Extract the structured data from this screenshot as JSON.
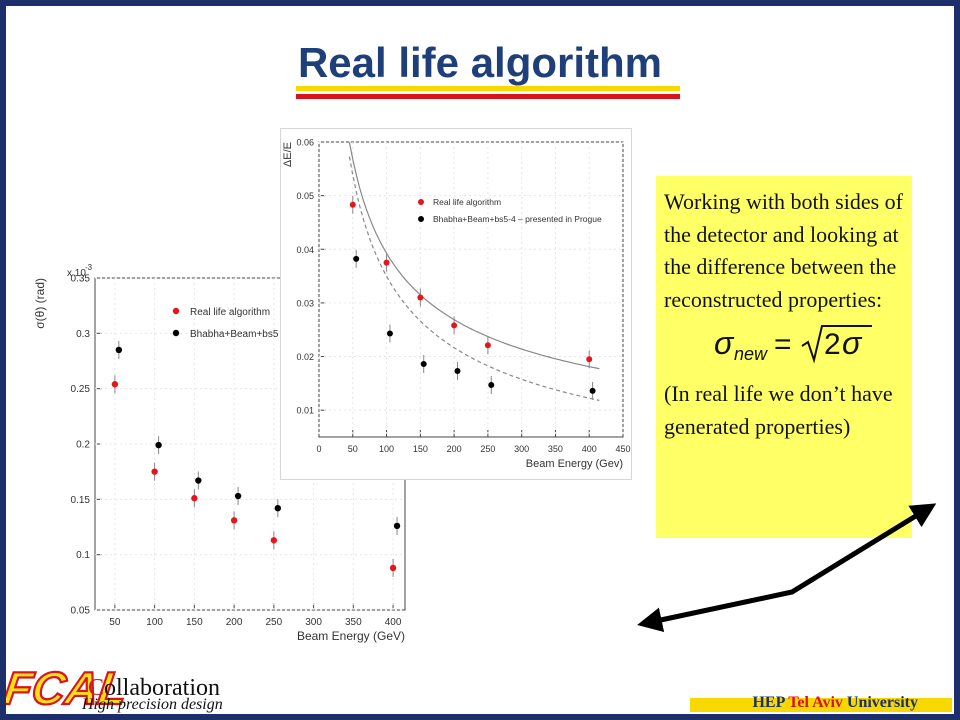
{
  "title": "Real life algorithm",
  "note": {
    "line1": "Working with both sides of the detector and looking at the difference between the reconstructed properties:",
    "formula_label": "σ_new = √2 σ",
    "line2": "(In real life we don’t have generated properties)"
  },
  "footer": {
    "logo_text": "FCAL",
    "collab_first": "C",
    "collab_rest": "ollaboration",
    "subtitle": "High precision design",
    "uni_prefix": "HEP ",
    "uni_city": "Tel Aviv",
    "uni_suffix": " University"
  },
  "colors": {
    "title": "#1e3f7a",
    "frame": "#1c2f6b",
    "underline_yellow": "#f7d800",
    "underline_red": "#d8141d",
    "note_bg": "#ffff66",
    "series_red": "#e8141c",
    "series_black": "#000000"
  },
  "chart_data": [
    {
      "type": "scatter",
      "xlabel": "Beam Energy (GeV)",
      "ylabel": "σ(θ)   (rad)",
      "y_multiplier": "x 10",
      "y_multiplier_exp": "-3",
      "xlim": [
        25,
        415
      ],
      "ylim": [
        0.05,
        0.35
      ],
      "xticks": [
        50,
        100,
        150,
        200,
        250,
        300,
        350,
        400
      ],
      "yticks": [
        0.05,
        0.1,
        0.15,
        0.2,
        0.25,
        0.3,
        0.35
      ],
      "ytick_labels": [
        "0.05",
        "0.1",
        "0.15",
        "0.2",
        "0.25",
        "0.3",
        "0.35"
      ],
      "legend": [
        "Real life algorithm",
        "Bhabha+Beam+bs5"
      ],
      "series": [
        {
          "name": "Real life algorithm",
          "color": "#e8141c",
          "x": [
            50,
            100,
            150,
            200,
            250,
            400
          ],
          "y": [
            0.254,
            0.175,
            0.151,
            0.131,
            0.113,
            0.088
          ]
        },
        {
          "name": "Bhabha+Beam+bs5",
          "color": "#000000",
          "x": [
            55,
            105,
            155,
            205,
            255,
            405
          ],
          "y": [
            0.285,
            0.199,
            0.167,
            0.153,
            0.142,
            0.126
          ]
        }
      ]
    },
    {
      "type": "scatter",
      "xlabel": "Beam Energy (Gev)",
      "ylabel": "ΔE/E",
      "xlim": [
        0,
        450
      ],
      "ylim": [
        0.005,
        0.06
      ],
      "xticks": [
        0,
        50,
        100,
        150,
        200,
        250,
        300,
        350,
        400,
        450
      ],
      "yticks": [
        0.01,
        0.02,
        0.03,
        0.04,
        0.05,
        0.06
      ],
      "ytick_labels": [
        "0.01",
        "0.02",
        "0.03",
        "0.04",
        "0.05",
        "0.06"
      ],
      "legend": [
        "Real life algorithm",
        "Bhabha+Beam+bs5-4 – presented in Progue"
      ],
      "series": [
        {
          "name": "Real life algorithm",
          "color": "#e8141c",
          "x": [
            50,
            100,
            150,
            200,
            250,
            400
          ],
          "y": [
            0.0483,
            0.0375,
            0.031,
            0.0258,
            0.0221,
            0.0195
          ]
        },
        {
          "name": "Bhabha+Beam+bs5-4 – presented in Progue",
          "color": "#000000",
          "x": [
            55,
            105,
            155,
            205,
            255,
            405
          ],
          "y": [
            0.0382,
            0.0243,
            0.0186,
            0.0173,
            0.0147,
            0.0136
          ]
        }
      ]
    }
  ]
}
